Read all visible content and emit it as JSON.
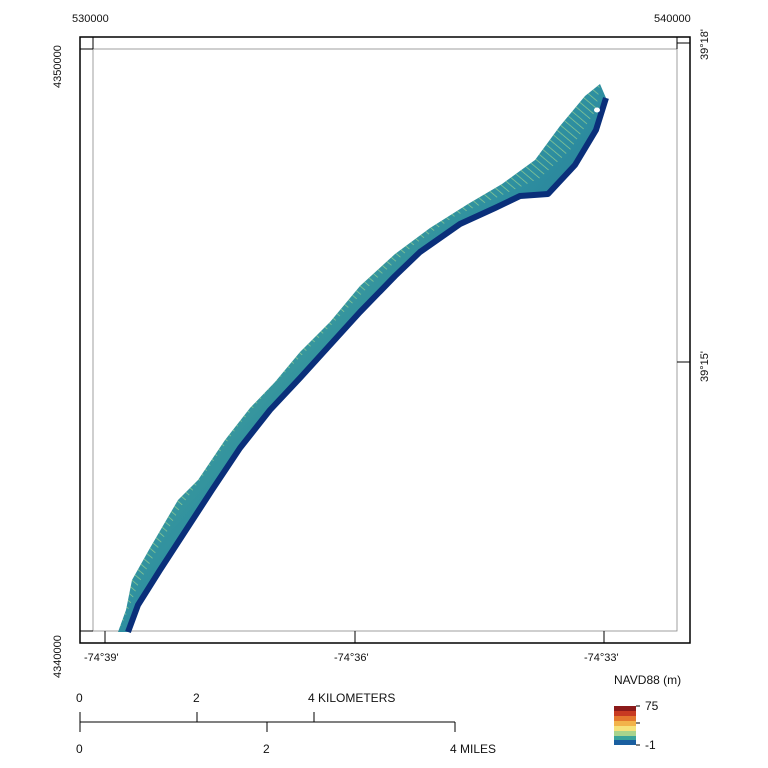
{
  "map": {
    "easting_left": "530000",
    "easting_right": "540000",
    "northing_top": "4350000",
    "northing_bottom": "4340000",
    "lat_top": "39°18'",
    "lat_mid": "39°15'",
    "lon_left": "-74°39'",
    "lon_mid": "-74°36'",
    "lon_right": "-74°33'"
  },
  "legend": {
    "title": "NAVD88 (m)",
    "max": "75",
    "min": "-1",
    "colors": [
      "#8b1a1a",
      "#d9532b",
      "#f2a33a",
      "#f6e27a",
      "#9fd08a",
      "#3aa39a",
      "#1a5fa0",
      "#0a2f7a"
    ]
  },
  "scale": {
    "km_0": "0",
    "km_2": "2",
    "km_label": "4 KILOMETERS",
    "mi_0": "0",
    "mi_2": "2",
    "mi_label": "4 MILES"
  }
}
